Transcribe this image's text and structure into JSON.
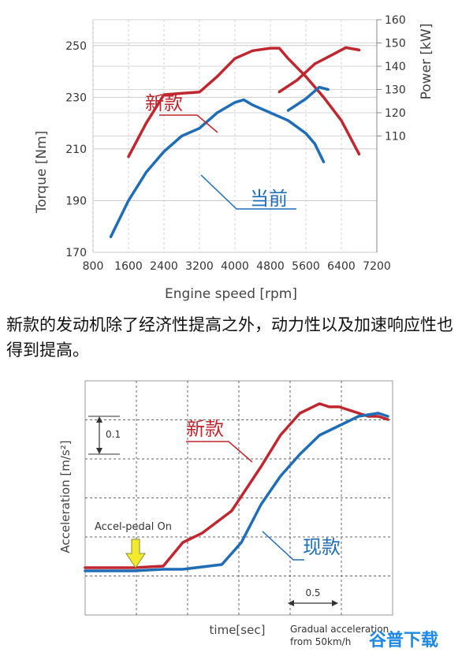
{
  "chart_data": [
    {
      "type": "line",
      "xlabel": "Engine speed [rpm]",
      "ylabel": "Torque [Nm]",
      "y2label": "Power [kW]",
      "x_ticks": [
        "800",
        "1600",
        "2400",
        "3200",
        "4000",
        "4800",
        "5600",
        "6400",
        "7200"
      ],
      "y_ticks": [
        "170",
        "190",
        "210",
        "230",
        "250"
      ],
      "y2_ticks": [
        "110",
        "120",
        "130",
        "140",
        "150",
        "160"
      ],
      "xlim": [
        800,
        7200
      ],
      "ylim": [
        170,
        260
      ],
      "y2lim": [
        110,
        160
      ],
      "grid": true,
      "series": [
        {
          "name": "新款",
          "axis": "torque",
          "color": "#c0262d",
          "x": [
            1600,
            2000,
            2400,
            2800,
            3200,
            3600,
            4000,
            4400,
            4800,
            5000,
            5200,
            5600,
            6000,
            6400,
            6800
          ],
          "y": [
            207,
            220,
            231,
            231.5,
            232,
            238,
            245,
            248,
            249,
            249,
            245,
            238,
            230,
            221,
            208
          ]
        },
        {
          "name": "当前",
          "axis": "torque",
          "color": "#1f6db7",
          "x": [
            1200,
            1600,
            2000,
            2400,
            2800,
            3200,
            3600,
            4000,
            4200,
            4400,
            4800,
            5200,
            5600,
            5800,
            6000
          ],
          "y": [
            176,
            190,
            201,
            209,
            215,
            218,
            224,
            228,
            229,
            227,
            224,
            221,
            216,
            212,
            205
          ]
        },
        {
          "name": "新款",
          "axis": "power",
          "color": "#c0262d",
          "x": [
            5000,
            5400,
            5800,
            6200,
            6500,
            6800
          ],
          "y": [
            129,
            134,
            141,
            145,
            148,
            147
          ]
        },
        {
          "name": "当前",
          "axis": "power",
          "color": "#1f6db7",
          "x": [
            5200,
            5600,
            5900,
            6100
          ],
          "y": [
            121,
            126,
            131,
            130
          ]
        }
      ]
    },
    {
      "type": "line",
      "xlabel": "time[sec]",
      "ylabel": "Acceleration [m/s²]",
      "grid": true,
      "annotations": {
        "scale_y": "0.1",
        "scale_x": "0.5",
        "pedal": "Accel-pedal On",
        "gradual_line1": "Gradual acceleration",
        "gradual_line2": "from 50km/h"
      },
      "time_range": [
        0,
        3.1
      ],
      "accel_range": [
        0,
        0.6
      ],
      "series": [
        {
          "name": "新款",
          "color": "#c0262d",
          "t": [
            0,
            0.5,
            0.8,
            1.0,
            1.2,
            1.5,
            1.8,
            2.0,
            2.2,
            2.4,
            2.5,
            2.6,
            2.7,
            2.8,
            2.9,
            3.0,
            3.1
          ],
          "a": [
            0.02,
            0.02,
            0.025,
            0.1,
            0.13,
            0.2,
            0.34,
            0.44,
            0.51,
            0.54,
            0.53,
            0.53,
            0.52,
            0.51,
            0.5,
            0.5,
            0.49
          ]
        },
        {
          "name": "现款",
          "color": "#1f6db7",
          "t": [
            0,
            0.5,
            0.8,
            1.0,
            1.4,
            1.6,
            1.8,
            2.0,
            2.2,
            2.4,
            2.6,
            2.8,
            3.0,
            3.1
          ],
          "a": [
            0.01,
            0.01,
            0.015,
            0.015,
            0.03,
            0.1,
            0.22,
            0.31,
            0.38,
            0.44,
            0.47,
            0.5,
            0.51,
            0.5
          ]
        }
      ]
    }
  ],
  "labels": {
    "new_top": "新款",
    "current_top": "当前",
    "new_bottom": "新款",
    "current_bottom": "现款"
  },
  "caption": "新款的发动机除了经济性提高之外，动力性以及加速响应性也得到提高。",
  "watermark": "谷普下载"
}
